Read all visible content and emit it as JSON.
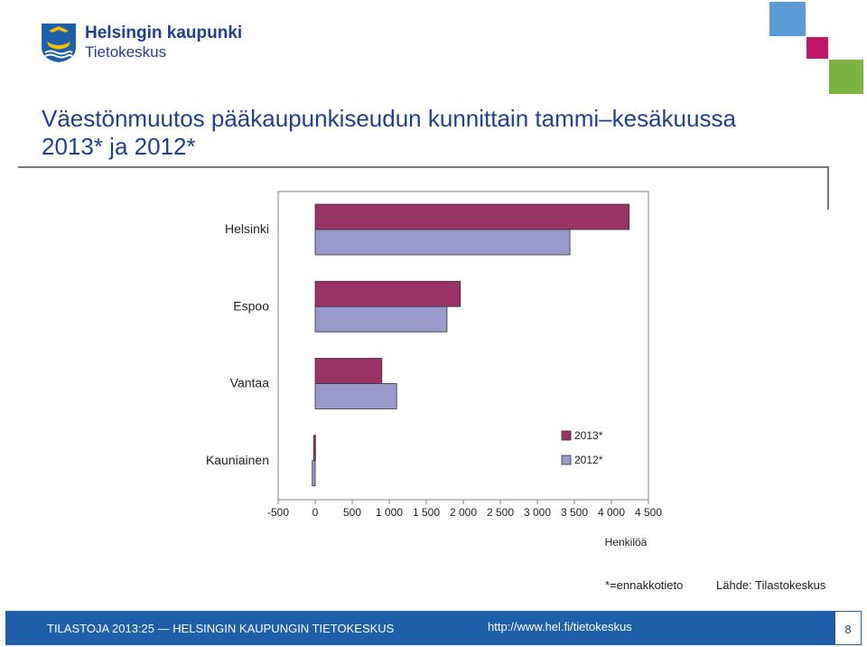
{
  "header": {
    "logo_line1": "Helsingin kaupunki",
    "logo_line2": "Tietokeskus",
    "accent_colors": [
      "#5b9bd5",
      "#c2186b",
      "#7cb342"
    ]
  },
  "title": {
    "line1": "Väestönmuutos pääkaupunkiseudun kunnittain tammi–kesäkuussa",
    "line2": "2013* ja 2012*"
  },
  "chart_data": {
    "type": "bar",
    "orientation": "horizontal",
    "categories": [
      "Helsinki",
      "Espoo",
      "Vantaa",
      "Kauniainen"
    ],
    "series": [
      {
        "name": "2013*",
        "color": "#993366",
        "values": [
          4240,
          1960,
          900,
          -20
        ]
      },
      {
        "name": "2012*",
        "color": "#9999cc",
        "values": [
          3440,
          1780,
          1100,
          -40
        ]
      }
    ],
    "xlabel": "Henkilöä",
    "xlim": [
      -500,
      4500
    ],
    "xticks": [
      -500,
      0,
      500,
      1000,
      1500,
      2000,
      2500,
      3000,
      3500,
      4000,
      4500
    ],
    "xtick_labels": [
      "-500",
      "0",
      "500",
      "1 000",
      "1 500",
      "2 000",
      "2 500",
      "3 000",
      "3 500",
      "4 000",
      "4 500"
    ],
    "legend_position": "bottom-right inside plot",
    "grid": false
  },
  "notes": {
    "estimate": "*=ennakkotieto",
    "source": "Lähde: Tilastokeskus"
  },
  "footer": {
    "left": "TILASTOJA 2013:25 — HELSINGIN KAUPUNGIN TIETOKESKUS",
    "url": "http://www.hel.fi/tietokeskus",
    "page": "8"
  }
}
